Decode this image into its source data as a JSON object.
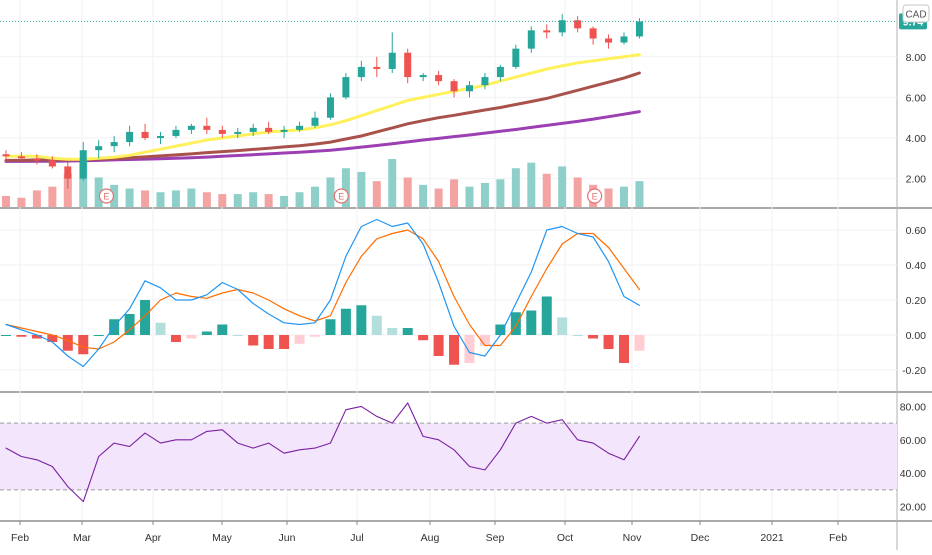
{
  "currency": "CAD",
  "last_price": "9.74",
  "colors": {
    "up": "#26a69a",
    "down": "#ef5350",
    "up_vol": "#8fcfca",
    "down_vol": "#f4a3a3",
    "ma_fast": "#fff15c",
    "ma_mid": "#a9514b",
    "ma_slow": "#9c3fb3",
    "macd_line": "#2196f3",
    "signal_line": "#ff6d00",
    "hist_pos_strong": "#26a69a",
    "hist_pos_weak": "#b2dfdb",
    "hist_neg_strong": "#ef5350",
    "hist_neg_weak": "#ffcdd2",
    "rsi_line": "#7b1fa2",
    "rsi_band": "#f3e5fb",
    "earnings_marker": "#e57373"
  },
  "x_axis": {
    "labels": [
      "Feb",
      "Mar",
      "Apr",
      "May",
      "Jun",
      "Jul",
      "Aug",
      "Sep",
      "Oct",
      "Nov",
      "Dec",
      "2021",
      "Feb"
    ]
  },
  "chart_data": [
    {
      "type": "candlestick",
      "panel": "price",
      "y_ticks": [
        "2.00",
        "4.00",
        "6.00",
        "8.00"
      ],
      "ylim": [
        0.8,
        10.5
      ],
      "earnings_marker_label": "E",
      "earnings_weeks": [
        6.5,
        21.7,
        38.1
      ],
      "weekly": [
        {
          "o": 3.2,
          "h": 3.4,
          "l": 2.9,
          "c": 3.1
        },
        {
          "o": 3.1,
          "h": 3.3,
          "l": 2.9,
          "c": 3.0
        },
        {
          "o": 3.0,
          "h": 3.2,
          "l": 2.7,
          "c": 2.9
        },
        {
          "o": 2.9,
          "h": 3.1,
          "l": 2.5,
          "c": 2.6
        },
        {
          "o": 2.6,
          "h": 2.8,
          "l": 1.5,
          "c": 2.0
        },
        {
          "o": 2.0,
          "h": 3.8,
          "l": 1.9,
          "c": 3.4
        },
        {
          "o": 3.4,
          "h": 3.9,
          "l": 3.0,
          "c": 3.6
        },
        {
          "o": 3.6,
          "h": 4.1,
          "l": 3.3,
          "c": 3.8
        },
        {
          "o": 3.8,
          "h": 4.6,
          "l": 3.6,
          "c": 4.3
        },
        {
          "o": 4.3,
          "h": 4.7,
          "l": 3.9,
          "c": 4.0
        },
        {
          "o": 4.0,
          "h": 4.3,
          "l": 3.7,
          "c": 4.1
        },
        {
          "o": 4.1,
          "h": 4.6,
          "l": 4.0,
          "c": 4.4
        },
        {
          "o": 4.4,
          "h": 4.7,
          "l": 4.2,
          "c": 4.6
        },
        {
          "o": 4.6,
          "h": 5.0,
          "l": 4.2,
          "c": 4.4
        },
        {
          "o": 4.4,
          "h": 4.6,
          "l": 4.0,
          "c": 4.2
        },
        {
          "o": 4.2,
          "h": 4.5,
          "l": 4.0,
          "c": 4.3
        },
        {
          "o": 4.3,
          "h": 4.7,
          "l": 4.1,
          "c": 4.5
        },
        {
          "o": 4.5,
          "h": 4.8,
          "l": 4.2,
          "c": 4.3
        },
        {
          "o": 4.3,
          "h": 4.6,
          "l": 4.0,
          "c": 4.4
        },
        {
          "o": 4.4,
          "h": 4.8,
          "l": 4.3,
          "c": 4.6
        },
        {
          "o": 4.6,
          "h": 5.3,
          "l": 4.5,
          "c": 5.0
        },
        {
          "o": 5.0,
          "h": 6.2,
          "l": 4.9,
          "c": 6.0
        },
        {
          "o": 6.0,
          "h": 7.2,
          "l": 5.9,
          "c": 7.0
        },
        {
          "o": 7.0,
          "h": 7.8,
          "l": 6.8,
          "c": 7.5
        },
        {
          "o": 7.5,
          "h": 8.0,
          "l": 7.0,
          "c": 7.4
        },
        {
          "o": 7.4,
          "h": 9.2,
          "l": 7.2,
          "c": 8.2
        },
        {
          "o": 8.2,
          "h": 8.4,
          "l": 6.7,
          "c": 7.0
        },
        {
          "o": 7.0,
          "h": 7.2,
          "l": 6.8,
          "c": 7.1
        },
        {
          "o": 7.1,
          "h": 7.3,
          "l": 6.6,
          "c": 6.8
        },
        {
          "o": 6.8,
          "h": 6.9,
          "l": 6.0,
          "c": 6.3
        },
        {
          "o": 6.3,
          "h": 6.8,
          "l": 6.0,
          "c": 6.6
        },
        {
          "o": 6.6,
          "h": 7.2,
          "l": 6.4,
          "c": 7.0
        },
        {
          "o": 7.0,
          "h": 7.6,
          "l": 6.8,
          "c": 7.5
        },
        {
          "o": 7.5,
          "h": 8.6,
          "l": 7.4,
          "c": 8.4
        },
        {
          "o": 8.4,
          "h": 9.5,
          "l": 8.2,
          "c": 9.3
        },
        {
          "o": 9.3,
          "h": 9.6,
          "l": 8.9,
          "c": 9.2
        },
        {
          "o": 9.2,
          "h": 10.1,
          "l": 9.0,
          "c": 9.8
        },
        {
          "o": 9.8,
          "h": 10.0,
          "l": 9.2,
          "c": 9.4
        },
        {
          "o": 9.4,
          "h": 9.5,
          "l": 8.6,
          "c": 8.9
        },
        {
          "o": 8.9,
          "h": 9.1,
          "l": 8.4,
          "c": 8.7
        },
        {
          "o": 8.7,
          "h": 9.2,
          "l": 8.6,
          "c": 9.0
        },
        {
          "o": 9.0,
          "h": 9.9,
          "l": 8.9,
          "c": 9.74
        }
      ],
      "volume": [
        0.6,
        0.5,
        0.9,
        1.1,
        1.8,
        2.4,
        1.6,
        1.2,
        1.0,
        0.9,
        0.8,
        0.9,
        1.0,
        0.8,
        0.7,
        0.7,
        0.8,
        0.7,
        0.6,
        0.8,
        1.1,
        1.6,
        2.1,
        1.9,
        1.4,
        2.6,
        1.6,
        1.2,
        1.0,
        1.5,
        1.1,
        1.3,
        1.5,
        2.1,
        2.4,
        1.8,
        2.2,
        1.6,
        1.2,
        1.0,
        1.1,
        1.4
      ],
      "sma_fast": [
        3.1,
        3.1,
        3.1,
        3.0,
        2.95,
        2.95,
        3.0,
        3.05,
        3.15,
        3.3,
        3.45,
        3.6,
        3.75,
        3.9,
        4.0,
        4.1,
        4.2,
        4.3,
        4.35,
        4.4,
        4.5,
        4.65,
        4.85,
        5.1,
        5.35,
        5.6,
        5.85,
        6.0,
        6.15,
        6.3,
        6.45,
        6.6,
        6.8,
        7.0,
        7.2,
        7.4,
        7.55,
        7.7,
        7.8,
        7.9,
        8.0,
        8.1
      ],
      "sma_mid": [
        2.9,
        2.9,
        2.92,
        2.92,
        2.92,
        2.93,
        2.95,
        2.98,
        3.02,
        3.07,
        3.12,
        3.17,
        3.22,
        3.28,
        3.33,
        3.38,
        3.44,
        3.5,
        3.56,
        3.62,
        3.7,
        3.8,
        3.95,
        4.1,
        4.3,
        4.5,
        4.7,
        4.85,
        5.0,
        5.12,
        5.25,
        5.38,
        5.5,
        5.65,
        5.8,
        5.95,
        6.15,
        6.35,
        6.55,
        6.75,
        6.95,
        7.2
      ],
      "sma_slow": [
        2.85,
        2.85,
        2.86,
        2.86,
        2.87,
        2.88,
        2.9,
        2.92,
        2.94,
        2.96,
        2.98,
        3.0,
        3.03,
        3.06,
        3.1,
        3.14,
        3.18,
        3.22,
        3.26,
        3.3,
        3.35,
        3.4,
        3.47,
        3.55,
        3.63,
        3.72,
        3.81,
        3.9,
        3.98,
        4.07,
        4.15,
        4.24,
        4.33,
        4.42,
        4.52,
        4.62,
        4.72,
        4.82,
        4.93,
        5.05,
        5.17,
        5.3
      ]
    },
    {
      "type": "macd",
      "panel": "macd",
      "y_ticks": [
        "-0.20",
        "0.00",
        "0.20",
        "0.40",
        "0.60"
      ],
      "ylim": [
        -0.32,
        0.72
      ],
      "macd": [
        0.06,
        0.03,
        0.0,
        -0.04,
        -0.12,
        -0.18,
        -0.08,
        0.05,
        0.15,
        0.31,
        0.27,
        0.2,
        0.2,
        0.23,
        0.3,
        0.26,
        0.18,
        0.12,
        0.07,
        0.06,
        0.07,
        0.2,
        0.45,
        0.62,
        0.66,
        0.62,
        0.64,
        0.52,
        0.3,
        0.05,
        -0.1,
        -0.12,
        0.0,
        0.18,
        0.36,
        0.6,
        0.62,
        0.58,
        0.56,
        0.42,
        0.22,
        0.17
      ],
      "signal": [
        0.06,
        0.04,
        0.02,
        0.0,
        -0.03,
        -0.07,
        -0.08,
        -0.04,
        0.03,
        0.11,
        0.2,
        0.24,
        0.22,
        0.21,
        0.24,
        0.26,
        0.24,
        0.2,
        0.15,
        0.11,
        0.08,
        0.11,
        0.3,
        0.45,
        0.55,
        0.58,
        0.6,
        0.55,
        0.42,
        0.22,
        0.06,
        -0.06,
        -0.06,
        0.05,
        0.22,
        0.38,
        0.52,
        0.58,
        0.58,
        0.5,
        0.38,
        0.26
      ],
      "histogram": [
        0.0,
        -0.01,
        -0.02,
        -0.04,
        -0.09,
        -0.11,
        0.0,
        0.09,
        0.12,
        0.2,
        0.07,
        -0.04,
        -0.02,
        0.02,
        0.06,
        0.0,
        -0.06,
        -0.08,
        -0.08,
        -0.05,
        -0.01,
        0.09,
        0.15,
        0.17,
        0.11,
        0.04,
        0.04,
        -0.03,
        -0.12,
        -0.17,
        -0.16,
        -0.06,
        0.06,
        0.13,
        0.14,
        0.22,
        0.1,
        0.0,
        -0.02,
        -0.08,
        -0.16,
        -0.09
      ]
    },
    {
      "type": "line",
      "panel": "rsi",
      "y_ticks": [
        "20.00",
        "40.00",
        "60.00",
        "80.00"
      ],
      "ylim": [
        12,
        88
      ],
      "band": [
        30,
        70
      ],
      "values": [
        55,
        50,
        48,
        44,
        32,
        23,
        50,
        58,
        56,
        64,
        58,
        60,
        60,
        65,
        66,
        58,
        55,
        58,
        52,
        54,
        55,
        58,
        78,
        80,
        74,
        70,
        82,
        62,
        60,
        54,
        44,
        42,
        54,
        70,
        74,
        70,
        72,
        60,
        58,
        52,
        48,
        62
      ]
    }
  ]
}
